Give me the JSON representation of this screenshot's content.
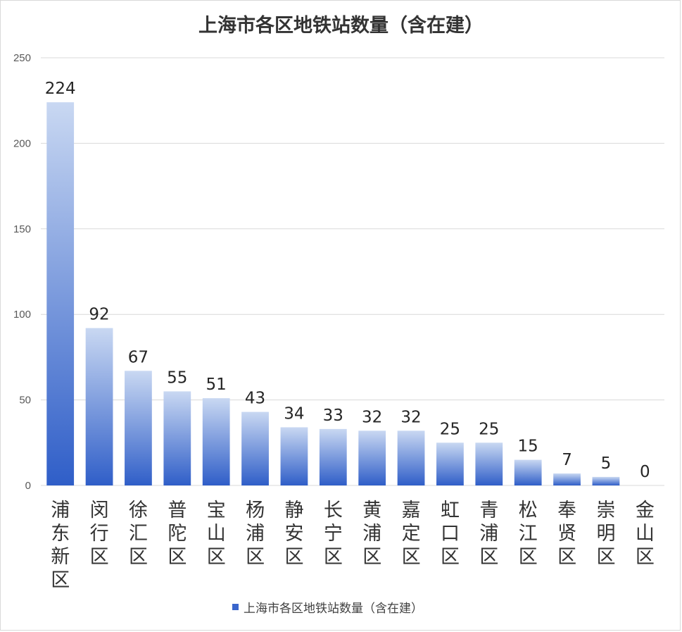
{
  "chart_data": {
    "type": "bar",
    "title": "上海市各区地铁站数量（含在建）",
    "xlabel": "",
    "ylabel": "",
    "ylim": [
      0,
      250
    ],
    "yticks": [
      0,
      50,
      100,
      150,
      200,
      250
    ],
    "grid": true,
    "legend_position": "bottom",
    "categories": [
      "浦东新区",
      "闵行区",
      "徐汇区",
      "普陀区",
      "宝山区",
      "杨浦区",
      "静安区",
      "长宁区",
      "黄浦区",
      "嘉定区",
      "虹口区",
      "青浦区",
      "松江区",
      "奉贤区",
      "崇明区",
      "金山区"
    ],
    "series": [
      {
        "name": "上海市各区地铁站数量（含在建）",
        "values": [
          224,
          92,
          67,
          55,
          51,
          43,
          34,
          33,
          32,
          32,
          25,
          25,
          15,
          7,
          5,
          0
        ]
      }
    ],
    "colors": {
      "bar_top": "#c9d8f2",
      "bar_bottom": "#2f5ec8",
      "legend_swatch": "#3a66cc",
      "grid": "#d9d9d9"
    }
  }
}
